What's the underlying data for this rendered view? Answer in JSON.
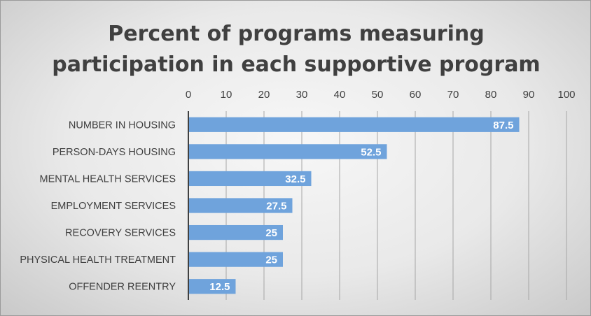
{
  "chart_data": {
    "type": "bar",
    "orientation": "horizontal",
    "title_lines": [
      "Percent of programs measuring",
      "participation in each supportive program"
    ],
    "categories": [
      "NUMBER IN HOUSING",
      "PERSON-DAYS HOUSING",
      "MENTAL HEALTH SERVICES",
      "EMPLOYMENT SERVICES",
      "RECOVERY SERVICES",
      "PHYSICAL HEALTH TREATMENT",
      "OFFENDER REENTRY"
    ],
    "values": [
      87.5,
      52.5,
      32.5,
      27.5,
      25,
      25,
      12.5
    ],
    "data_labels": [
      "87.5",
      "52.5",
      "32.5",
      "27.5",
      "25",
      "25",
      "12.5"
    ],
    "xticks": [
      "0",
      "10",
      "20",
      "30",
      "40",
      "50",
      "60",
      "70",
      "80",
      "90",
      "100"
    ],
    "xlim": [
      0,
      100
    ],
    "x_axis_position": "top",
    "grid": true,
    "bar_color": "#6fa3dc",
    "grid_color": "#a6a6a6"
  }
}
